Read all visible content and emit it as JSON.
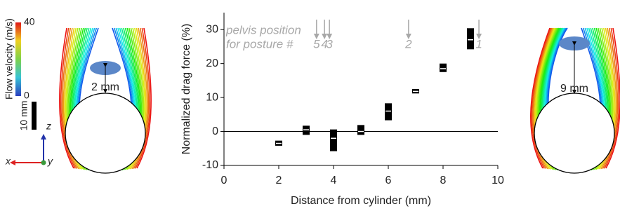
{
  "chart_data": {
    "type": "box",
    "xlabel": "Distance from cylinder (mm)",
    "ylabel": "Normalized drag force (%)",
    "x": [
      2,
      3,
      4,
      5,
      6,
      7,
      8,
      9
    ],
    "low": [
      -4.2,
      -1,
      -5.8,
      -1,
      3.3,
      11.2,
      17.5,
      24.2
    ],
    "median": [
      -3.5,
      0.5,
      -2,
      0,
      6,
      11.8,
      18.5,
      27
    ],
    "high": [
      -2.7,
      1.7,
      0.6,
      1.9,
      8.3,
      12.5,
      20,
      30.4
    ],
    "color": "#000000",
    "xlim": [
      0,
      10
    ],
    "xticks": [
      0,
      2,
      4,
      6,
      8,
      10
    ],
    "ylim": [
      -10,
      35
    ],
    "yticks": [
      -10,
      0,
      10,
      20,
      30
    ],
    "zero_line": true,
    "annotation": {
      "lines": [
        "pelvis position",
        "for posture #"
      ],
      "color": "#a8a8a8",
      "markers": [
        {
          "label": "5",
          "x": 3.38
        },
        {
          "label": "4",
          "x": 3.67
        },
        {
          "label": "3",
          "x": 3.85
        },
        {
          "label": "2",
          "x": 6.74
        },
        {
          "label": "1",
          "x": 9.31
        }
      ]
    }
  },
  "left_panel": {
    "colorbar": {
      "label": "Flow velocity (m/s)",
      "ticks": [
        0,
        40
      ]
    },
    "scale_bar": "10 mm",
    "axes": {
      "z": "z",
      "x": "x",
      "y": "y"
    },
    "gap": "2 mm"
  },
  "right_panel": {
    "gap": "9 mm"
  }
}
